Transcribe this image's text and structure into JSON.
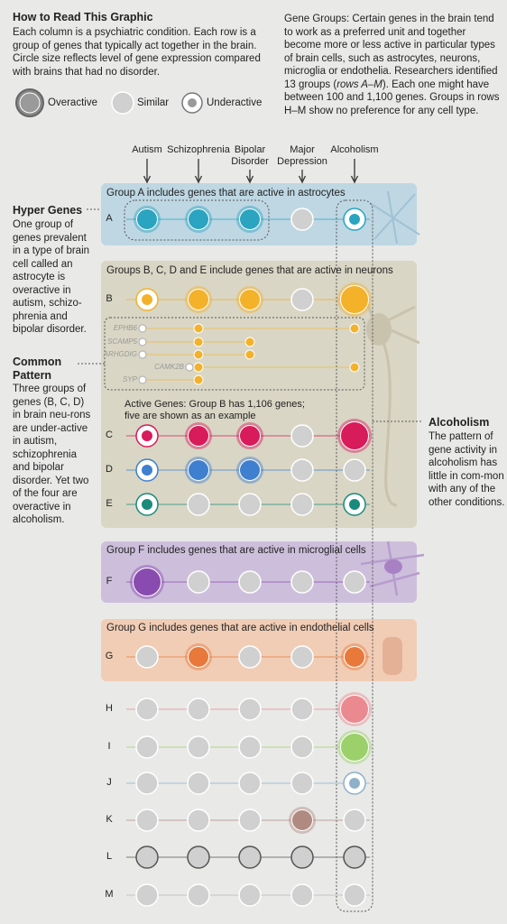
{
  "intro": {
    "title": "How to Read This Graphic",
    "body": "Each column is a psychiatric condition. Each row is a group of genes that typically act together in the brain. Circle size reflects level of gene expression compared with brains that had no disorder."
  },
  "legend": [
    "Overactive",
    "Similar",
    "Underactive"
  ],
  "gene_groups": {
    "before": "Gene Groups: Certain genes in the brain tend to work as a preferred unit and together become more or less active in particular types of brain cells, such as astrocytes, neurons, microglia or endothelia. Researchers identified 13 groups (",
    "emphasis": "rows A–M",
    "after": "). Each one might have between 100 and 1,100 genes. Groups in rows H–M show no preference for any cell type."
  },
  "columns": [
    "Autism",
    "Schizophrenia",
    "Bipolar Disorder",
    "Major Depression",
    "Alcoholism"
  ],
  "rows": [
    "A",
    "B",
    "C",
    "D",
    "E",
    "F",
    "G",
    "H",
    "I",
    "J",
    "K",
    "L",
    "M"
  ],
  "panels": [
    "Group A includes genes that are active in astrocytes",
    "Groups B, C, D and E include genes that are active in neurons",
    "Group F includes genes that are active in microglial cells",
    "Group G includes genes that are active in endothelial cells"
  ],
  "genes": [
    "EPHB6",
    "SCAMP5",
    "ARHGDIG",
    "CAMK2B",
    "SYP"
  ],
  "active_genes": "Active Genes: Group B has 1,106 genes; five are shown as an example",
  "notes": {
    "hyper": {
      "title": "Hyper Genes",
      "body": "One group of genes prevalent in a type of brain cell called an astrocyte is overactive in autism, schizo-phrenia and bipolar disorder."
    },
    "common": {
      "title": "Common Pattern",
      "body": "Three groups of genes (B, C, D) in brain neu-rons are under-active in autism, schizophrenia and bipolar disorder. Yet two of the four are overactive in alcoholism."
    },
    "alcoholism": {
      "title": "Alcoholism",
      "body": "The pattern of gene activity in alcoholism has little in com-mon with any of the other conditions."
    }
  }
}
